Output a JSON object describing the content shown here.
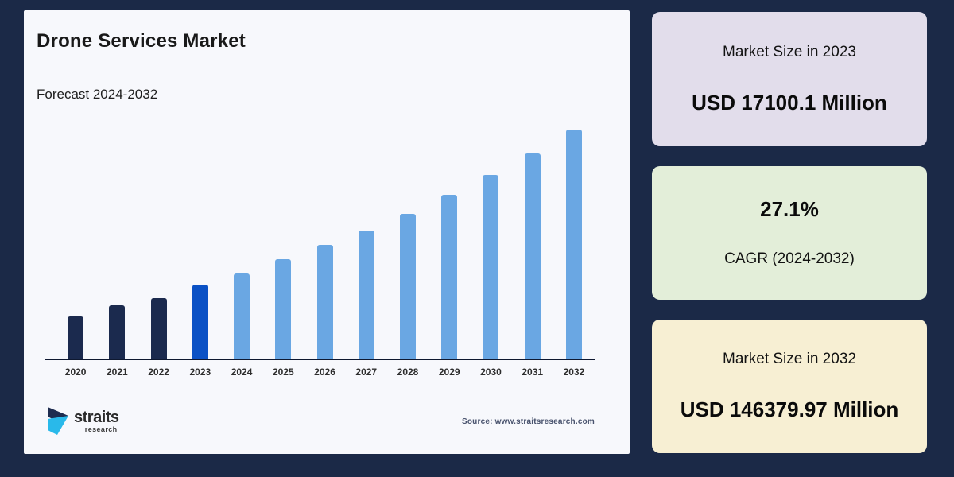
{
  "page": {
    "background": "#1b2947"
  },
  "panel": {
    "background": "#f7f8fc",
    "title": "Drone Services Market",
    "subtitle": "Forecast 2024-2032",
    "source": "Source: www.straitsresearch.com"
  },
  "logo": {
    "wordmark": "straits",
    "subtext": "research",
    "icon": "straits-research-logo",
    "icon_navy": "#1e2c4f",
    "icon_cyan": "#29b9ea"
  },
  "chart_data": {
    "type": "bar",
    "title": "Drone Services Market",
    "subtitle": "Forecast 2024-2032",
    "categories": [
      "2020",
      "2021",
      "2022",
      "2023",
      "2024",
      "2025",
      "2026",
      "2027",
      "2028",
      "2029",
      "2030",
      "2031",
      "2032"
    ],
    "values": [
      53,
      67,
      76,
      93,
      107,
      125,
      143,
      161,
      182,
      206,
      231,
      258,
      288
    ],
    "values_unit": "relative-bar-height-px (chart has no numeric axis labels)",
    "series_roles": [
      "historical",
      "historical",
      "historical",
      "base-year",
      "forecast",
      "forecast",
      "forecast",
      "forecast",
      "forecast",
      "forecast",
      "forecast",
      "forecast",
      "forecast"
    ],
    "colors": {
      "historical": "#1b2a4e",
      "base-year": "#0b51c5",
      "forecast": "#6aa7e3"
    },
    "known_points": [
      {
        "year": "2023",
        "value": 17100.1,
        "unit": "USD Million"
      },
      {
        "year": "2032",
        "value": 146379.97,
        "unit": "USD Million"
      }
    ],
    "xlabel": "",
    "ylabel": "",
    "grid": false,
    "legend": false,
    "axis_line_color": "#0e1830"
  },
  "cards": [
    {
      "label": "Market Size in 2023",
      "value": "USD 17100.1 Million",
      "background": "#e2ddeb"
    },
    {
      "value": "27.1%",
      "label": "CAGR (2024-2032)",
      "background": "#e3eed9"
    },
    {
      "label": "Market Size in 2032",
      "value": "USD 146379.97 Million",
      "background": "#f7efd3"
    }
  ]
}
